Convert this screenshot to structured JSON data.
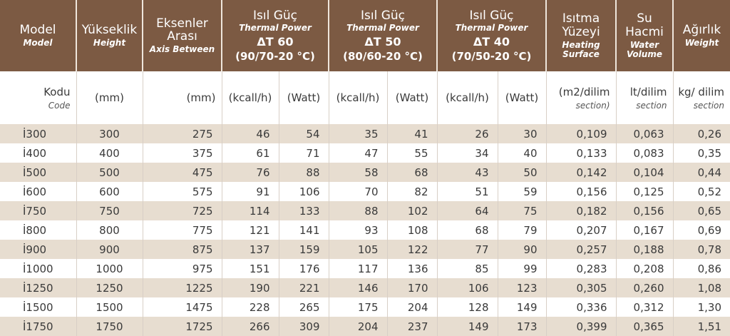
{
  "headers": [
    {
      "tr": "Model",
      "en": "Model"
    },
    {
      "tr": "Yükseklik",
      "en": "Height"
    },
    {
      "tr": "Eksenler Arası",
      "en": "Axis Between"
    },
    {
      "tr": "Isıl Güç",
      "en": "Thermal Power",
      "dt": "ΔT 60",
      "cond": "(90/70-20 °C)"
    },
    {
      "tr": "Isıl Güç",
      "en": "Thermal Power",
      "dt": "ΔT 50",
      "cond": "(80/60-20 °C)"
    },
    {
      "tr": "Isıl Güç",
      "en": "Thermal Power",
      "dt": "ΔT 40",
      "cond": "(70/50-20 °C)"
    },
    {
      "tr": "Isıtma Yüzeyi",
      "en": "Heating Surface"
    },
    {
      "tr": "Su Hacmi",
      "en": "Water Volume"
    },
    {
      "tr": "Ağırlık",
      "en": "Weight"
    }
  ],
  "units": [
    {
      "main": "Kodu",
      "sub": "Code"
    },
    {
      "main": "(mm)"
    },
    {
      "main": "(mm)"
    },
    {
      "main": "(kcall/h)"
    },
    {
      "main": "(Watt)"
    },
    {
      "main": "(kcall/h)"
    },
    {
      "main": "(Watt)"
    },
    {
      "main": "(kcall/h)"
    },
    {
      "main": "(Watt)"
    },
    {
      "main": "(m2/dilim",
      "sub": "section)"
    },
    {
      "main": "lt/dilim",
      "sub": "section"
    },
    {
      "main": "kg/ dilim",
      "sub": "section"
    }
  ],
  "rows": [
    [
      "İ300",
      "300",
      "275",
      "46",
      "54",
      "35",
      "41",
      "26",
      "30",
      "0,109",
      "0,063",
      "0,26"
    ],
    [
      "İ400",
      "400",
      "375",
      "61",
      "71",
      "47",
      "55",
      "34",
      "40",
      "0,133",
      "0,083",
      "0,35"
    ],
    [
      "İ500",
      "500",
      "475",
      "76",
      "88",
      "58",
      "68",
      "43",
      "50",
      "0,142",
      "0,104",
      "0,44"
    ],
    [
      "İ600",
      "600",
      "575",
      "91",
      "106",
      "70",
      "82",
      "51",
      "59",
      "0,156",
      "0,125",
      "0,52"
    ],
    [
      "İ750",
      "750",
      "725",
      "114",
      "133",
      "88",
      "102",
      "64",
      "75",
      "0,182",
      "0,156",
      "0,65"
    ],
    [
      "İ800",
      "800",
      "775",
      "121",
      "141",
      "93",
      "108",
      "68",
      "79",
      "0,207",
      "0,167",
      "0,69"
    ],
    [
      "İ900",
      "900",
      "875",
      "137",
      "159",
      "105",
      "122",
      "77",
      "90",
      "0,257",
      "0,188",
      "0,78"
    ],
    [
      "İ1000",
      "1000",
      "975",
      "151",
      "176",
      "117",
      "136",
      "85",
      "99",
      "0,283",
      "0,208",
      "0,86"
    ],
    [
      "İ1250",
      "1250",
      "1225",
      "190",
      "221",
      "146",
      "170",
      "106",
      "123",
      "0,305",
      "0,260",
      "1,08"
    ],
    [
      "İ1500",
      "1500",
      "1475",
      "228",
      "265",
      "175",
      "204",
      "128",
      "149",
      "0,336",
      "0,312",
      "1,30"
    ],
    [
      "İ1750",
      "1750",
      "1725",
      "266",
      "309",
      "204",
      "237",
      "149",
      "173",
      "0,399",
      "0,365",
      "1,51"
    ]
  ],
  "colors": {
    "header_bg": "#7c5a43",
    "stripe_bg": "#e7ddd0"
  }
}
